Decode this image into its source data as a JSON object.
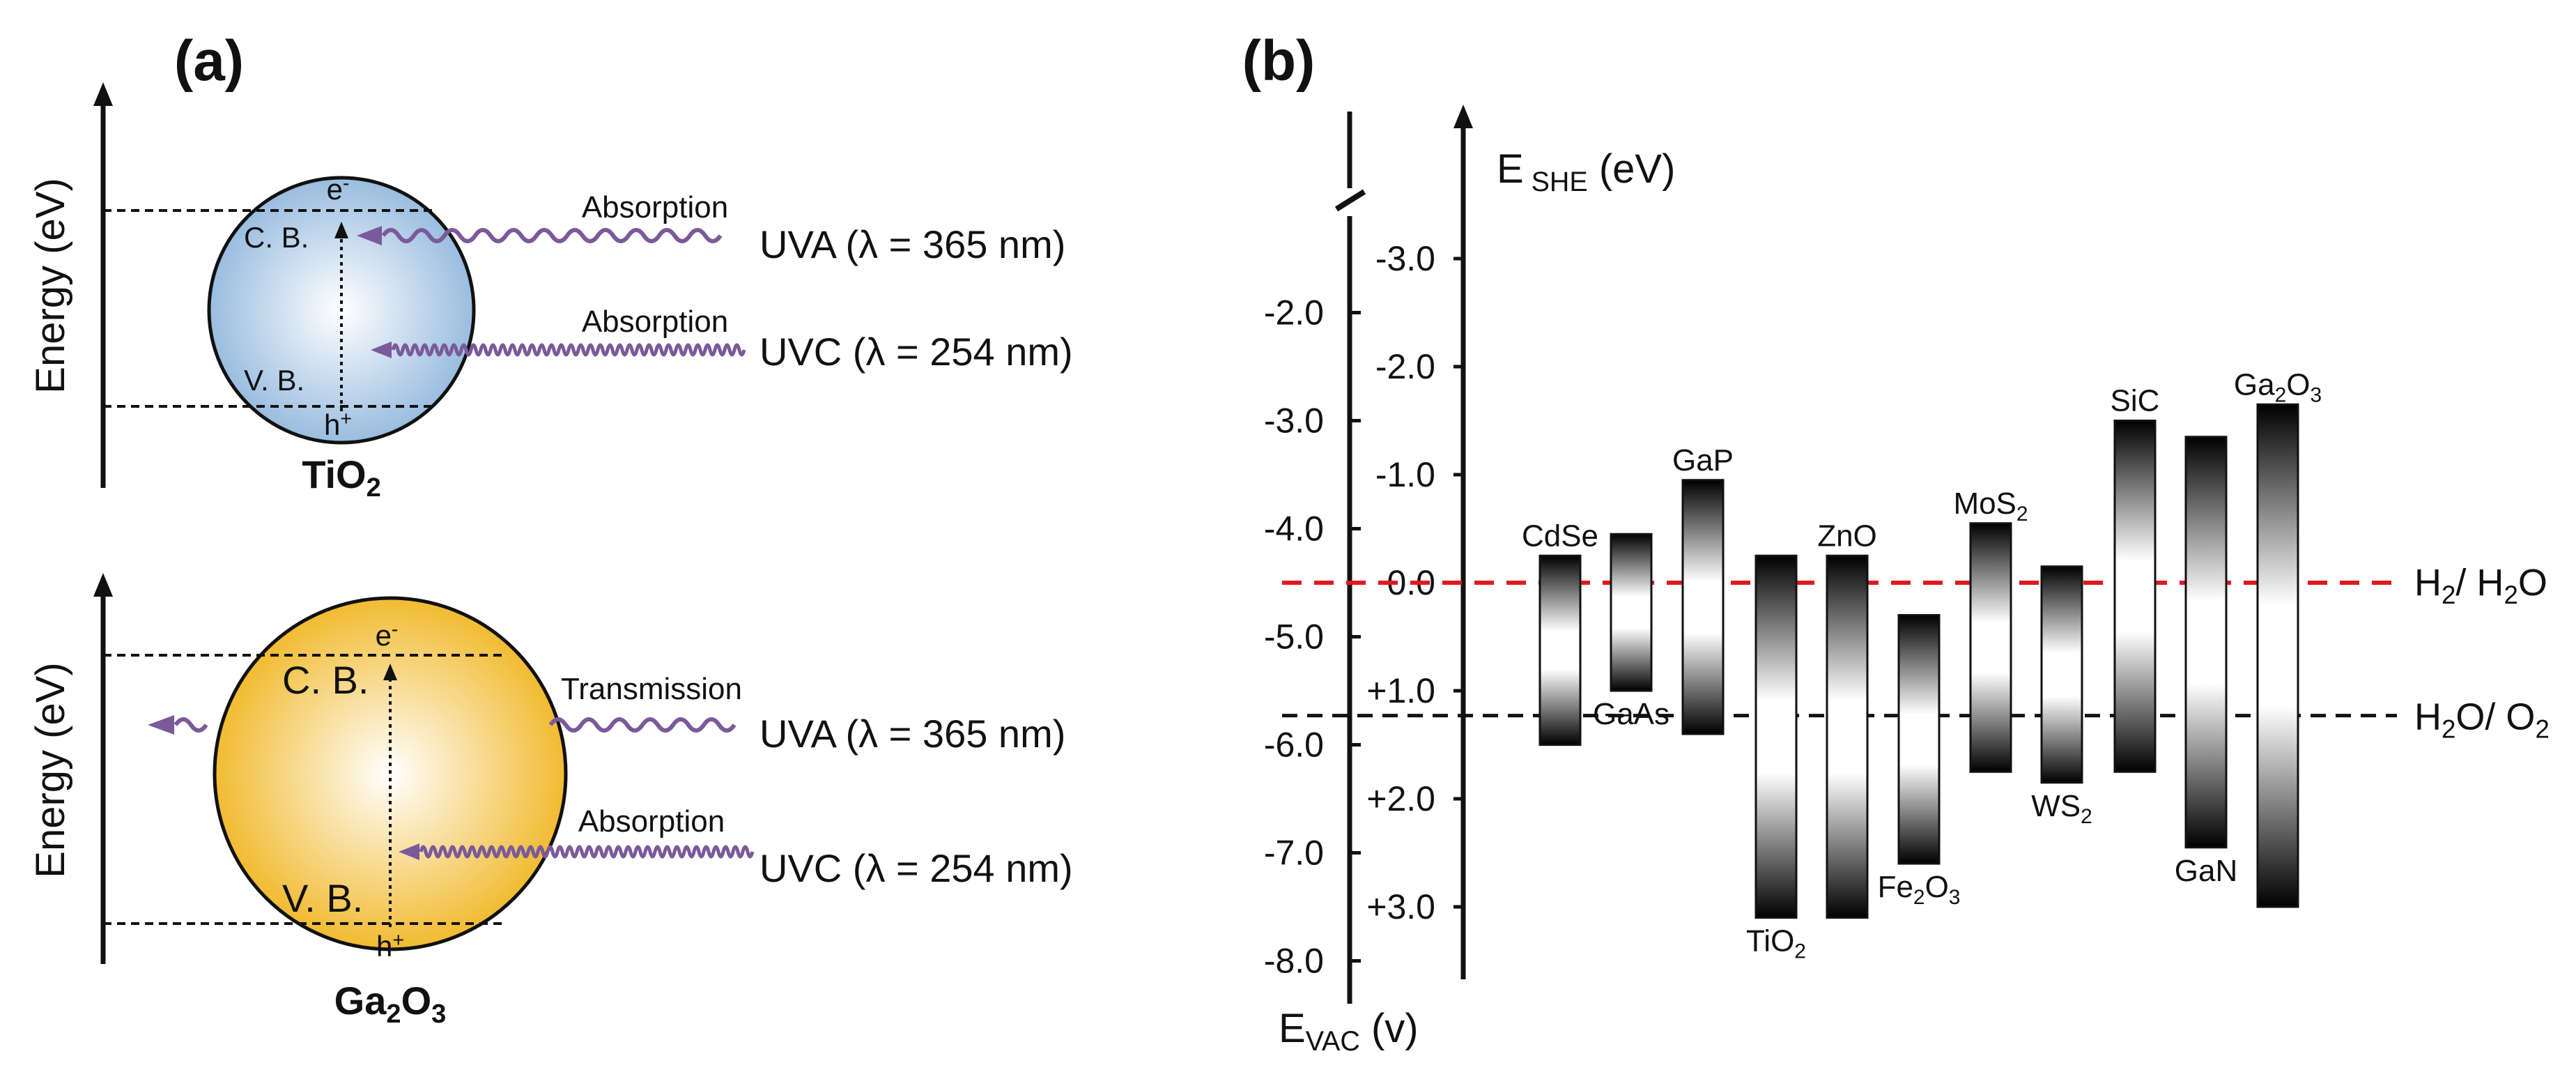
{
  "panel_a": {
    "label": "(a)",
    "y_axis_label": "Energy (eV)",
    "top": {
      "material": "TiO",
      "material_sub": "2",
      "electron": "e",
      "electron_sup": "-",
      "cb": "C. B.",
      "vb": "V. B.",
      "hole": "h",
      "hole_sup": "+",
      "uva_process": "Absorption",
      "uvc_process": "Absorption",
      "uva": "UVA (λ = 365 nm)",
      "uvc": "UVC (λ = 254 nm)",
      "color": "#8fb6dc"
    },
    "bottom": {
      "material": "Ga",
      "material_sub1": "2",
      "material_mid": "O",
      "material_sub2": "3",
      "electron": "e",
      "electron_sup": "-",
      "cb": "C. B.",
      "vb": "V. B.",
      "hole": "h",
      "hole_sup": "+",
      "uva_process": "Transmission",
      "uvc_process": "Absorption",
      "uva": "UVA (λ = 365 nm)",
      "uvc": "UVC (λ = 254 nm)",
      "color": "#f0b41c"
    }
  },
  "panel_b": {
    "label": "(b)",
    "evac_axis": {
      "title": "E",
      "title_sub": "VAC",
      "title_suffix": " (v)",
      "ticks": [
        "-2.0",
        "-3.0",
        "-4.0",
        "-5.0",
        "-6.0",
        "-7.0",
        "-8.0"
      ]
    },
    "eshe_axis": {
      "title": "E",
      "title_sub": " SHE",
      "title_suffix": " (eV)",
      "ticks": [
        "-3.0",
        "-2.0",
        "-1.0",
        "0.0",
        "+1.0",
        "+2.0",
        "+3.0"
      ]
    },
    "reference_lines": {
      "h2_label": "H",
      "h2_sub": "2",
      "h2_suffix": "/ H",
      "h2_sub2": "2",
      "h2_end": "O",
      "h2_color": "#e0191f",
      "o2_label": "H",
      "o2_sub": "2",
      "o2_mid": "O/ O",
      "o2_sub2": "2",
      "o2_color": "#111111"
    },
    "semiconductors": [
      {
        "name": "CdSe",
        "sub": "",
        "cb": -0.25,
        "vb": 1.5
      },
      {
        "name": "GaAs",
        "sub": "",
        "cb": -0.45,
        "vb": 1.0
      },
      {
        "name": "GaP",
        "sub": "",
        "cb": -0.95,
        "vb": 1.4
      },
      {
        "name": "TiO",
        "sub": "2",
        "cb": -0.25,
        "vb": 3.1
      },
      {
        "name": "ZnO",
        "sub": "",
        "cb": -0.25,
        "vb": 3.1
      },
      {
        "name": "Fe",
        "sub": "2",
        "name2": "O",
        "sub2": "3",
        "cb": 0.3,
        "vb": 2.6
      },
      {
        "name": "MoS",
        "sub": "2",
        "cb": -0.55,
        "vb": 1.75
      },
      {
        "name": "WS",
        "sub": "2",
        "cb": -0.15,
        "vb": 1.85
      },
      {
        "name": "SiC",
        "sub": "",
        "cb": -1.5,
        "vb": 1.75
      },
      {
        "name": "GaN",
        "sub": "",
        "cb": -1.35,
        "vb": 2.45
      },
      {
        "name": "Ga",
        "sub": "2",
        "name2": "O",
        "sub2": "3",
        "cb": -1.65,
        "vb": 3.0
      }
    ]
  }
}
